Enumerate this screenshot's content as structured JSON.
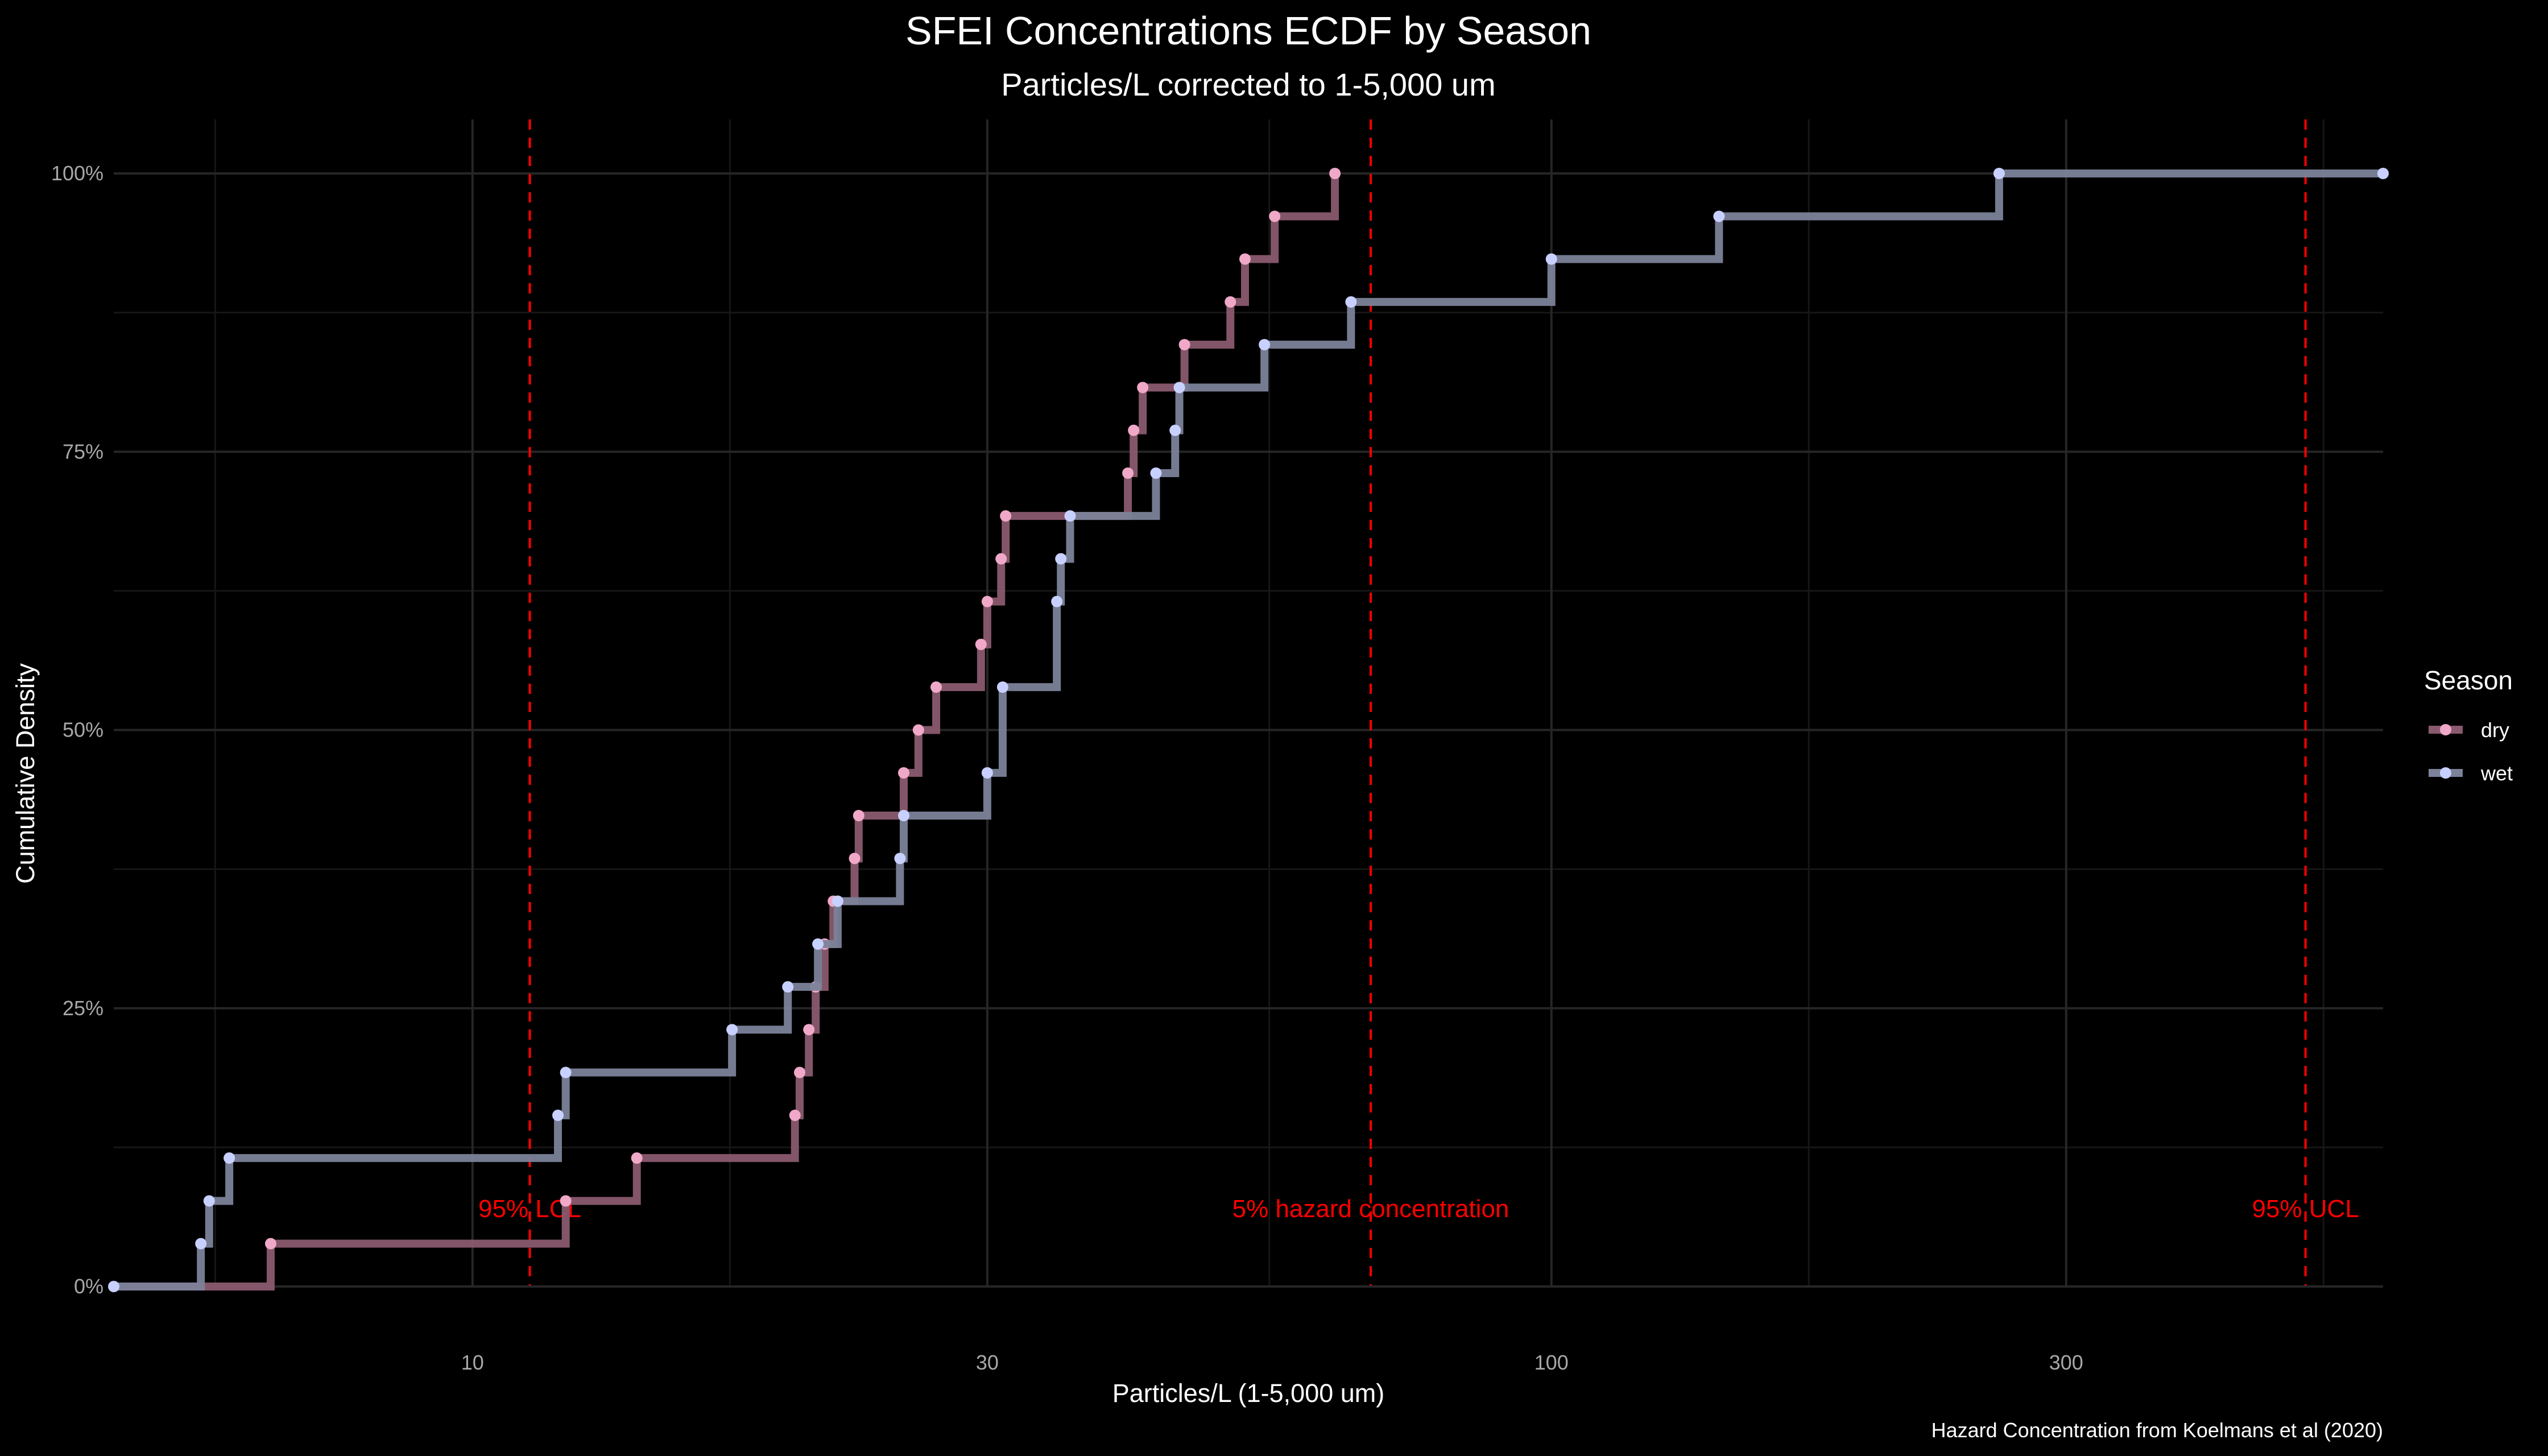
{
  "chart_data": {
    "type": "line",
    "subtype": "ecdf-step",
    "title": "SFEI Concentrations ECDF by Season",
    "subtitle": "Particles/L corrected to 1-5,000 um",
    "xlabel": "Particles/L (1-5,000 um)",
    "ylabel": "Cumulative Density",
    "x_scale": "log10",
    "xlim": [
      4.65,
      590
    ],
    "ylim": [
      0,
      1
    ],
    "x_ticks": [
      {
        "value": 10,
        "label": "10"
      },
      {
        "value": 30,
        "label": "30"
      },
      {
        "value": 100,
        "label": "100"
      },
      {
        "value": 300,
        "label": "300"
      }
    ],
    "y_ticks": [
      {
        "value": 0,
        "label": "0%"
      },
      {
        "value": 0.25,
        "label": "25%"
      },
      {
        "value": 0.5,
        "label": "50%"
      },
      {
        "value": 0.75,
        "label": "75%"
      },
      {
        "value": 1,
        "label": "100%"
      }
    ],
    "grid": true,
    "legend": {
      "title": "Season",
      "position": "right"
    },
    "series": [
      {
        "name": "dry",
        "line_color": "#8a5a6e",
        "point_color": "#f0a8c8",
        "x": [
          6.5,
          12.2,
          14.2,
          19.9,
          20.1,
          20.5,
          20.8,
          21.2,
          21.6,
          22.6,
          22.8,
          25.1,
          25.9,
          26.9,
          29.6,
          30.0,
          30.9,
          31.2,
          40.5,
          41.0,
          41.8,
          45.7,
          50.4,
          52.0,
          55.4,
          63.0
        ],
        "y": [
          0.0385,
          0.0769,
          0.1154,
          0.1538,
          0.1923,
          0.2308,
          0.2692,
          0.3077,
          0.3462,
          0.3846,
          0.4231,
          0.4615,
          0.5,
          0.5385,
          0.5769,
          0.6154,
          0.6538,
          0.6923,
          0.7308,
          0.7692,
          0.8077,
          0.8462,
          0.8846,
          0.9231,
          0.9615,
          1.0
        ]
      },
      {
        "name": "wet",
        "line_color": "#7b8299",
        "point_color": "#c8d0ff",
        "x": [
          4.65,
          5.6,
          5.7,
          5.95,
          12.0,
          12.2,
          17.4,
          19.6,
          20.9,
          21.8,
          24.9,
          25.1,
          30.0,
          31.0,
          34.8,
          35.1,
          35.8,
          43.0,
          44.8,
          45.2,
          54.2,
          65.2,
          100.0,
          143.0,
          260.0,
          590.0
        ],
        "y": [
          0.0,
          0.0385,
          0.0769,
          0.1154,
          0.1538,
          0.1923,
          0.2308,
          0.2692,
          0.3077,
          0.3462,
          0.3846,
          0.4231,
          0.4615,
          0.5385,
          0.6154,
          0.6538,
          0.6923,
          0.7308,
          0.7692,
          0.8077,
          0.8462,
          0.8846,
          0.9231,
          0.9615,
          1.0,
          1.0
        ]
      }
    ],
    "reference_lines": [
      {
        "x": 11.3,
        "label": "95% LCL",
        "color": "#ff0000"
      },
      {
        "x": 68.0,
        "label": "5% hazard concentration",
        "color": "#ff0000"
      },
      {
        "x": 500.0,
        "label": "95% UCL",
        "color": "#ff0000"
      }
    ],
    "caption": "Hazard Concentration from Koelmans et al (2020)"
  }
}
